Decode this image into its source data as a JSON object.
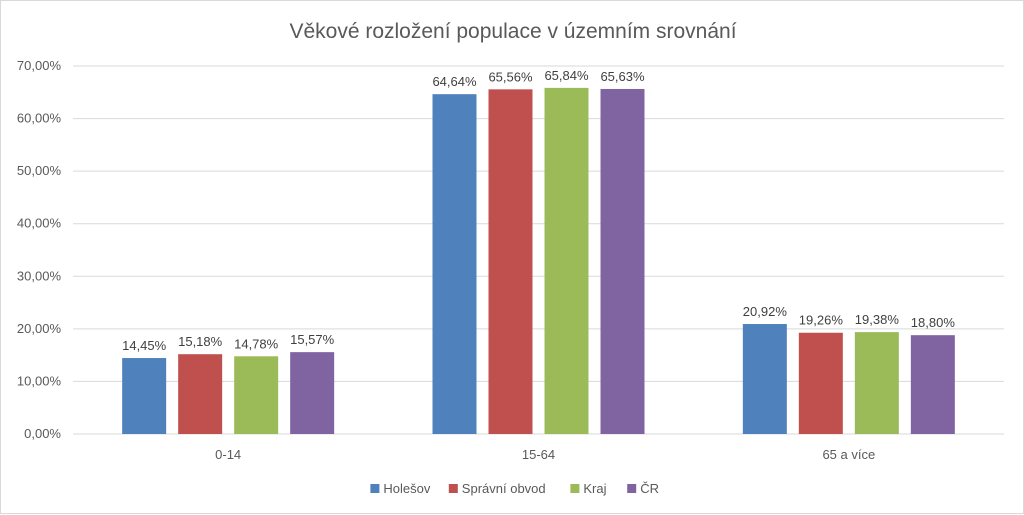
{
  "chart_data": {
    "type": "bar",
    "title": "Věkové rozložení populace v územním srovnání",
    "categories": [
      "0-14",
      "15-64",
      "65 a více"
    ],
    "series": [
      {
        "name": "Holešov",
        "color": "#4f81bd",
        "values": [
          14.45,
          64.64,
          20.92
        ],
        "labels": [
          "14,45%",
          "64,64%",
          "20,92%"
        ]
      },
      {
        "name": "Správní obvod",
        "color": "#c0504d",
        "values": [
          15.18,
          65.56,
          19.26
        ],
        "labels": [
          "15,18%",
          "65,56%",
          "19,26%"
        ]
      },
      {
        "name": "Kraj",
        "color": "#9bbb59",
        "values": [
          14.78,
          65.84,
          19.38
        ],
        "labels": [
          "14,78%",
          "65,84%",
          "19,38%"
        ]
      },
      {
        "name": "ČR",
        "color": "#8064a2",
        "values": [
          15.57,
          65.63,
          18.8
        ],
        "labels": [
          "15,57%",
          "65,63%",
          "18,80%"
        ]
      }
    ],
    "yticks": [
      {
        "value": 0,
        "label": "0,00%"
      },
      {
        "value": 10,
        "label": "10,00%"
      },
      {
        "value": 20,
        "label": "20,00%"
      },
      {
        "value": 30,
        "label": "30,00%"
      },
      {
        "value": 40,
        "label": "40,00%"
      },
      {
        "value": 50,
        "label": "50,00%"
      },
      {
        "value": 60,
        "label": "60,00%"
      },
      {
        "value": 70,
        "label": "70,00%"
      }
    ],
    "ylim": [
      0,
      70
    ],
    "grid": true,
    "legend_position": "bottom"
  }
}
